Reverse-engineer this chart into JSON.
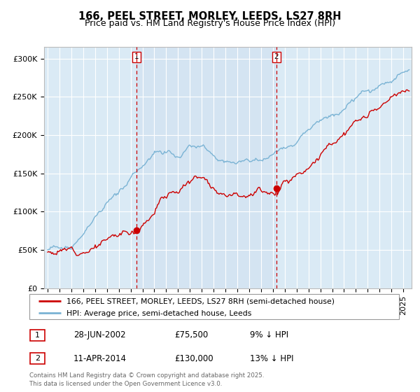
{
  "title": "166, PEEL STREET, MORLEY, LEEDS, LS27 8RH",
  "subtitle": "Price paid vs. HM Land Registry's House Price Index (HPI)",
  "ylabel_ticks": [
    "£0",
    "£50K",
    "£100K",
    "£150K",
    "£200K",
    "£250K",
    "£300K"
  ],
  "ytick_vals": [
    0,
    50000,
    100000,
    150000,
    200000,
    250000,
    300000
  ],
  "ylim": [
    0,
    315000
  ],
  "xlim_start": 1994.7,
  "xlim_end": 2025.7,
  "hpi_color": "#7ab3d4",
  "price_color": "#cc0000",
  "highlight_color": "#daeaf5",
  "bg_color": "#daeaf5",
  "marker1_date": 2002.49,
  "marker2_date": 2014.28,
  "marker1_price": 75500,
  "marker2_price": 130000,
  "legend_label1": "166, PEEL STREET, MORLEY, LEEDS, LS27 8RH (semi-detached house)",
  "legend_label2": "HPI: Average price, semi-detached house, Leeds",
  "annotation1_text": "28-JUN-2002",
  "annotation1_price": "£75,500",
  "annotation1_hpi": "9% ↓ HPI",
  "annotation2_text": "11-APR-2014",
  "annotation2_price": "£130,000",
  "annotation2_hpi": "13% ↓ HPI",
  "footer": "Contains HM Land Registry data © Crown copyright and database right 2025.\nThis data is licensed under the Open Government Licence v3.0.",
  "title_fontsize": 10.5,
  "subtitle_fontsize": 9,
  "tick_fontsize": 8,
  "grid_color": "#ffffff",
  "vline_color": "#cc0000",
  "spine_color": "#bbbbbb"
}
